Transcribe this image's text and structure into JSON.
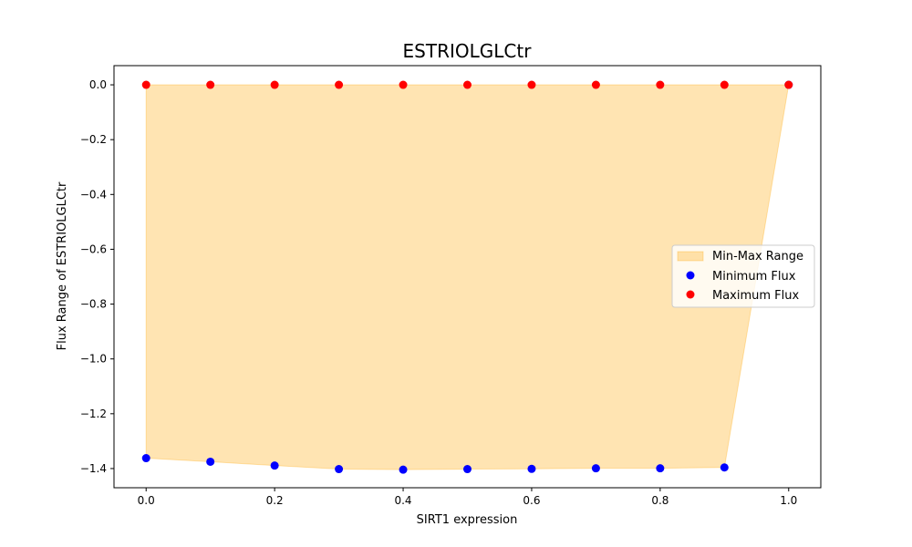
{
  "chart_data": {
    "type": "scatter",
    "title": "ESTRIOLGLCtr",
    "xlabel": "SIRT1 expression",
    "ylabel": "Flux Range of ESTRIOLGLCtr",
    "xlim": [
      -0.05,
      1.05
    ],
    "ylim": [
      -1.47,
      0.07
    ],
    "x_ticks": [
      0.0,
      0.2,
      0.4,
      0.6,
      0.8,
      1.0
    ],
    "x_tick_labels": [
      "0.0",
      "0.2",
      "0.4",
      "0.6",
      "0.8",
      "1.0"
    ],
    "y_ticks": [
      0.0,
      -0.2,
      -0.4,
      -0.6,
      -0.8,
      -1.0,
      -1.2,
      -1.4
    ],
    "y_tick_labels": [
      "0.0",
      "−0.2",
      "−0.4",
      "−0.6",
      "−0.8",
      "−1.0",
      "−1.2",
      "−1.4"
    ],
    "x": [
      0.0,
      0.1,
      0.2,
      0.3,
      0.4,
      0.5,
      0.6,
      0.7,
      0.8,
      0.9,
      1.0
    ],
    "series": [
      {
        "name": "Minimum Flux",
        "kind": "scatter",
        "color": "#0000ff",
        "values": [
          -1.362,
          -1.375,
          -1.389,
          -1.402,
          -1.404,
          -1.402,
          -1.401,
          -1.399,
          -1.399,
          -1.396,
          0.0
        ]
      },
      {
        "name": "Maximum Flux",
        "kind": "scatter",
        "color": "#ff0000",
        "values": [
          0.0,
          0.0,
          0.0,
          0.0,
          0.0,
          0.0,
          0.0,
          0.0,
          0.0,
          0.0,
          0.0
        ]
      }
    ],
    "fill": {
      "name": "Min-Max Range",
      "color": "#ffa500",
      "opacity": 0.3
    },
    "grid": false,
    "legend_position": "center-right",
    "legend": [
      "Min-Max Range",
      "Minimum Flux",
      "Maximum Flux"
    ]
  }
}
